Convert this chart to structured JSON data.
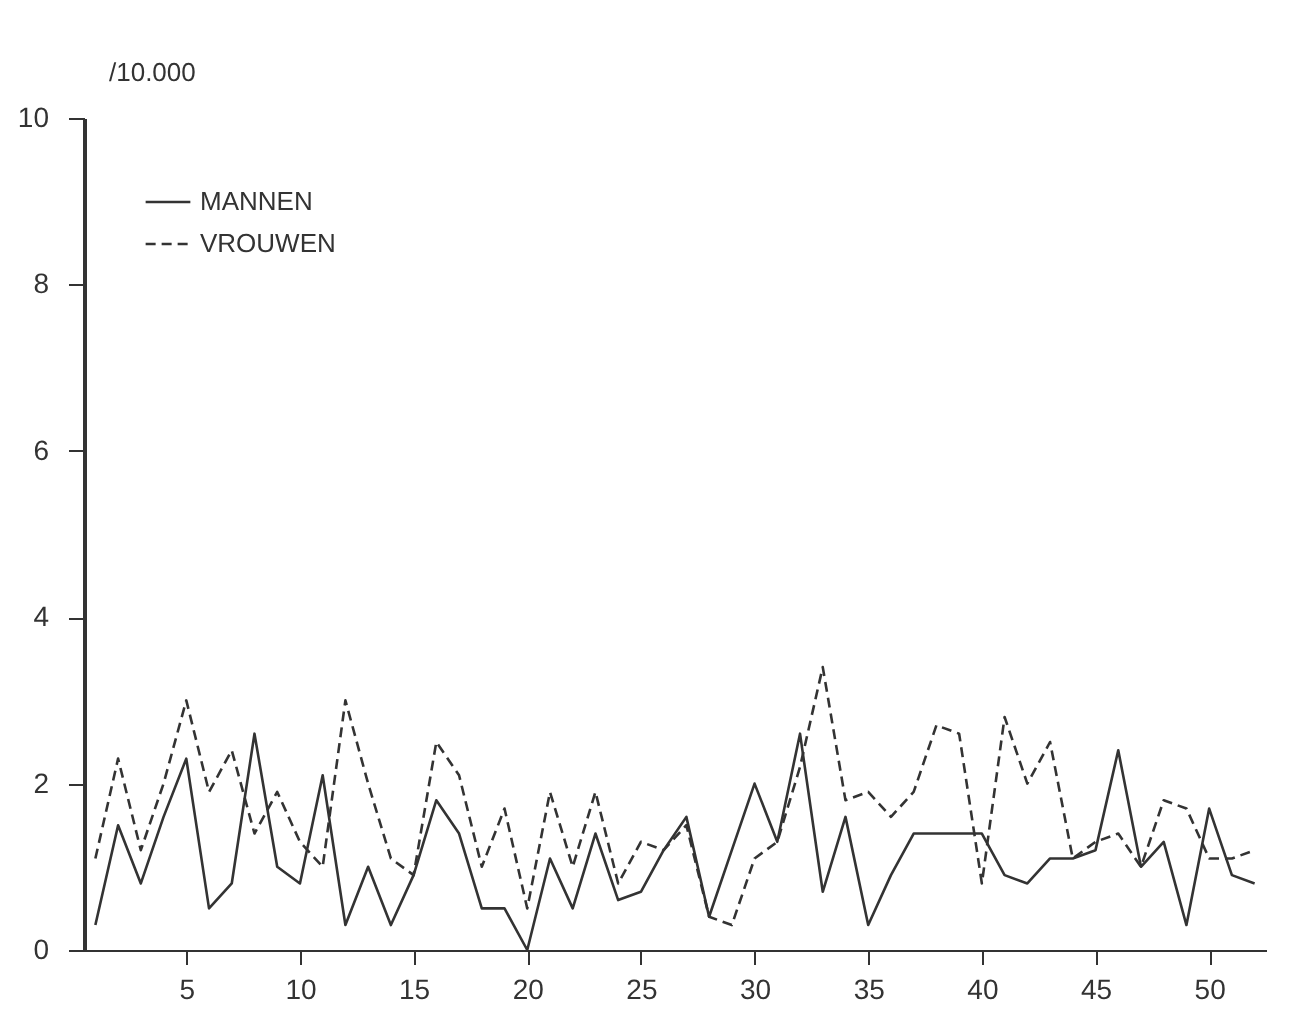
{
  "chart_data": {
    "type": "line",
    "ylabel": "/10.000",
    "x": [
      1,
      2,
      3,
      4,
      5,
      6,
      7,
      8,
      9,
      10,
      11,
      12,
      13,
      14,
      15,
      16,
      17,
      18,
      19,
      20,
      21,
      22,
      23,
      24,
      25,
      26,
      27,
      28,
      29,
      30,
      31,
      32,
      33,
      34,
      35,
      36,
      37,
      38,
      39,
      40,
      41,
      42,
      43,
      44,
      45,
      46,
      47,
      48,
      49,
      50,
      51,
      52
    ],
    "series": [
      {
        "name": "MANNEN",
        "color": "#333333",
        "line_style": "solid",
        "values": [
          0.3,
          1.5,
          0.8,
          1.6,
          2.3,
          0.5,
          0.8,
          2.6,
          1.0,
          0.8,
          2.1,
          0.3,
          1.0,
          0.3,
          0.9,
          1.8,
          1.4,
          0.5,
          0.5,
          0.0,
          1.1,
          0.5,
          1.4,
          0.6,
          0.7,
          1.2,
          1.6,
          0.4,
          1.2,
          2.0,
          1.3,
          2.6,
          0.7,
          1.6,
          0.3,
          0.9,
          1.4,
          1.4,
          1.4,
          1.4,
          0.9,
          0.8,
          1.1,
          1.1,
          1.2,
          2.4,
          1.0,
          1.3,
          0.3,
          1.7,
          0.9,
          0.8
        ]
      },
      {
        "name": "VROUWEN",
        "color": "#333333",
        "line_style": "dashed",
        "values": [
          1.1,
          2.3,
          1.2,
          2.0,
          3.0,
          1.9,
          2.4,
          1.4,
          1.9,
          1.3,
          1.0,
          3.0,
          2.0,
          1.1,
          0.9,
          2.5,
          2.1,
          1.0,
          1.7,
          0.5,
          1.9,
          1.0,
          1.9,
          0.8,
          1.3,
          1.2,
          1.5,
          0.4,
          0.3,
          1.1,
          1.3,
          2.2,
          3.4,
          1.8,
          1.9,
          1.6,
          1.9,
          2.7,
          2.6,
          0.8,
          2.8,
          2.0,
          2.5,
          1.1,
          1.3,
          1.4,
          1.0,
          1.8,
          1.7,
          1.1,
          1.1,
          1.2
        ]
      }
    ],
    "xlim": [
      0.5,
      52.5
    ],
    "xticks": [
      5,
      10,
      15,
      20,
      25,
      30,
      35,
      40,
      45,
      50
    ],
    "ylim": [
      0,
      10
    ],
    "yticks": [
      0,
      2,
      4,
      6,
      8,
      10
    ],
    "grid": false,
    "legend": "top left",
    "marker": "none"
  }
}
